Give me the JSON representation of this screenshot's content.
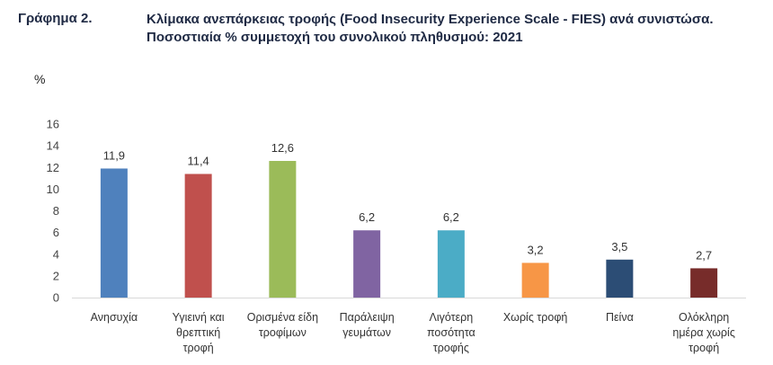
{
  "header": {
    "label": "Γράφημα 2.",
    "title": "Κλίμακα ανεπάρκειας τροφής (Food Insecurity Experience Scale - FIES) ανά συνιστώσα. Ποσοστιαία % συμμετοχή του συνολικού πληθυσμού: 2021"
  },
  "chart_data": {
    "type": "bar",
    "title": "Κλίμακα ανεπάρκειας τροφής (Food Insecurity Experience Scale - FIES) ανά συνιστώσα. Ποσοστιαία % συμμετοχή του συνολικού πληθυσμού: 2021",
    "ylabel": "%",
    "xlabel": "",
    "ylim": [
      0,
      16
    ],
    "yticks": [
      0,
      2,
      4,
      6,
      8,
      10,
      12,
      14,
      16
    ],
    "grid": false,
    "categories": [
      [
        "Ανησυχία"
      ],
      [
        "Υγιεινή και",
        "θρεπτική",
        "τροφή"
      ],
      [
        "Ορισμένα είδη",
        "τροφίμων"
      ],
      [
        "Παράλειψη",
        "γευμάτων"
      ],
      [
        "Λιγότερη",
        "ποσότητα",
        "τροφής"
      ],
      [
        "Χωρίς τροφή"
      ],
      [
        "Πείνα"
      ],
      [
        "Ολόκληρη",
        "ημέρα χωρίς",
        "τροφή"
      ]
    ],
    "values": [
      11.9,
      11.4,
      12.6,
      6.2,
      6.2,
      3.2,
      3.5,
      2.7
    ],
    "value_labels": [
      "11,9",
      "11,4",
      "12,6",
      "6,2",
      "6,2",
      "3,2",
      "3,5",
      "2,7"
    ],
    "colors": [
      "#4f81bd",
      "#c0504d",
      "#9bbb59",
      "#8064a2",
      "#4bacc6",
      "#f79646",
      "#2c4d75",
      "#772c2a"
    ]
  }
}
